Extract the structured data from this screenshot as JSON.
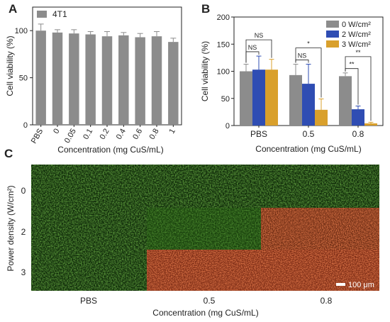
{
  "chart_data": [
    {
      "panel": "A",
      "type": "bar",
      "ylabel": "Cell viability (%)",
      "xlabel": "Concentration (mg CuS/mL)",
      "ylim": [
        0,
        125
      ],
      "yticks": [
        0,
        50,
        100
      ],
      "categories": [
        "PBS",
        "0",
        "0.05",
        "0.1",
        "0.2",
        "0.4",
        "0.6",
        "0.8",
        "1"
      ],
      "series": [
        {
          "name": "4T1",
          "color": "#8c8c8c",
          "values": [
            100,
            98,
            97,
            96,
            94,
            95,
            93,
            94,
            88
          ],
          "errors": [
            7,
            3,
            4,
            3,
            5,
            3,
            4,
            5,
            4
          ]
        }
      ],
      "legend": "top-left"
    },
    {
      "panel": "B",
      "type": "bar",
      "ylabel": "Cell viability (%)",
      "xlabel": "Concentration (mg CuS/mL)",
      "ylim": [
        0,
        200
      ],
      "yticks": [
        0,
        50,
        100,
        150,
        200
      ],
      "categories": [
        "PBS",
        "0.5",
        "0.8"
      ],
      "series": [
        {
          "name": "0 W/cm²",
          "color": "#8c8c8c",
          "values": [
            100,
            93,
            91
          ],
          "errors": [
            13,
            20,
            6
          ]
        },
        {
          "name": "2 W/cm²",
          "color": "#2f4db3",
          "values": [
            103,
            77,
            30
          ],
          "errors": [
            25,
            36,
            6
          ]
        },
        {
          "name": "3 W/cm²",
          "color": "#d9a02c",
          "values": [
            103,
            29,
            4
          ],
          "errors": [
            19,
            20,
            2
          ]
        }
      ],
      "significance": [
        {
          "group": 0,
          "pair": [
            0,
            1
          ],
          "label": "NS",
          "level": 1
        },
        {
          "group": 0,
          "pair": [
            0,
            2
          ],
          "label": "NS",
          "level": 2
        },
        {
          "group": 1,
          "pair": [
            0,
            1
          ],
          "label": "NS",
          "level": 1
        },
        {
          "group": 1,
          "pair": [
            0,
            2
          ],
          "label": "*",
          "level": 2
        },
        {
          "group": 2,
          "pair": [
            0,
            1
          ],
          "label": "**",
          "level": 1
        },
        {
          "group": 2,
          "pair": [
            0,
            2
          ],
          "label": "**",
          "level": 2
        }
      ],
      "legend": "top-right"
    }
  ],
  "panels": {
    "a": "A",
    "b": "B",
    "c": "C"
  },
  "micrograph": {
    "ylabel": "Power density (W/cm²)",
    "xlabel": "Concentration (mg CuS/mL)",
    "rows": [
      "0",
      "2",
      "3"
    ],
    "cols": [
      "PBS",
      "0.5",
      "0.8"
    ],
    "scalebar": "100 μm",
    "stain_live": "#2f7a1f",
    "stain_dead": "#c0301f"
  }
}
